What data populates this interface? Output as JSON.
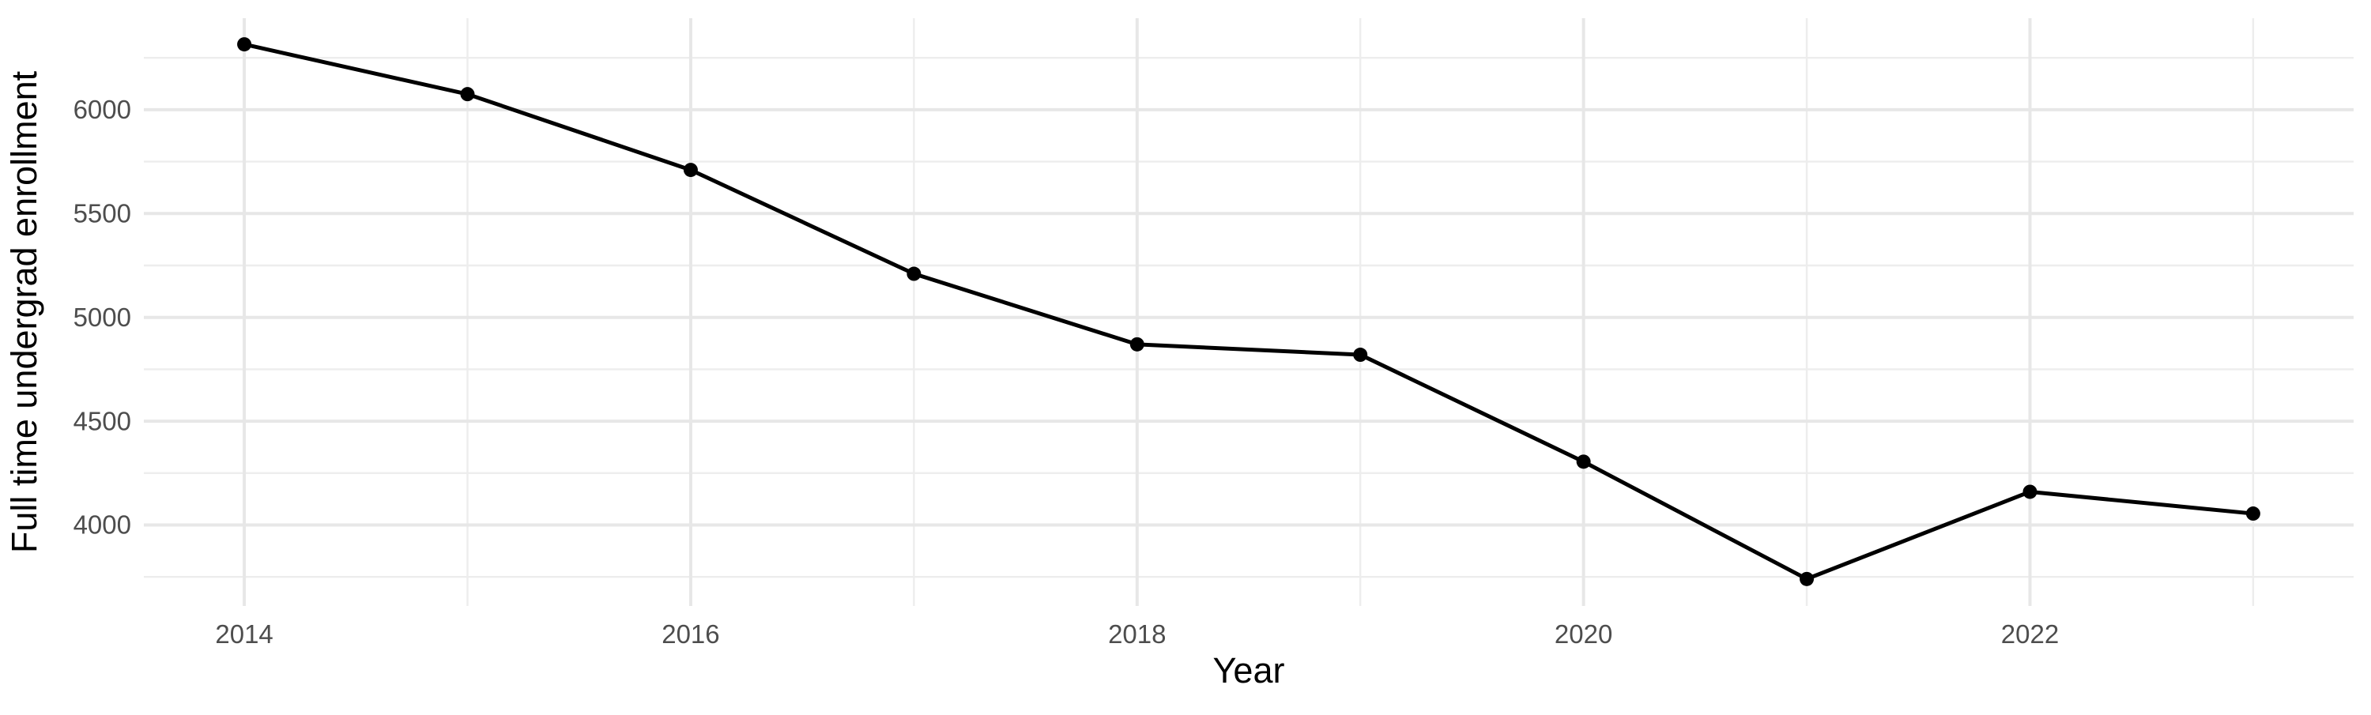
{
  "chart_data": {
    "type": "line",
    "title": "",
    "xlabel": "Year",
    "ylabel": "Full time undergrad enrollment",
    "x": [
      2014,
      2015,
      2016,
      2017,
      2018,
      2019,
      2020,
      2021,
      2022,
      2023
    ],
    "series": [
      {
        "name": "Full time undergrad enrollment",
        "values": [
          6315,
          6075,
          5710,
          5210,
          4870,
          4820,
          4305,
          3740,
          4160,
          4055
        ]
      }
    ],
    "x_major_ticks": [
      2014,
      2016,
      2018,
      2020,
      2022
    ],
    "x_minor_ticks": [
      2015,
      2017,
      2019,
      2021,
      2023
    ],
    "y_major_ticks": [
      4000,
      4500,
      5000,
      5500,
      6000
    ],
    "y_minor_ticks": [
      3750,
      4250,
      4750,
      5250,
      5750,
      6250
    ],
    "xlim": [
      2013.55,
      2023.45
    ],
    "ylim": [
      3610,
      6441
    ],
    "grid": "on",
    "legend": "none",
    "style": {
      "background": "#FFFFFF",
      "line_color": "#000000",
      "point_color": "#000000",
      "grid_major_color": "#E7E7E7",
      "grid_minor_color": "#EDEDED",
      "tick_label_color": "#4D4D4D",
      "axis_title_color": "#000000"
    }
  }
}
